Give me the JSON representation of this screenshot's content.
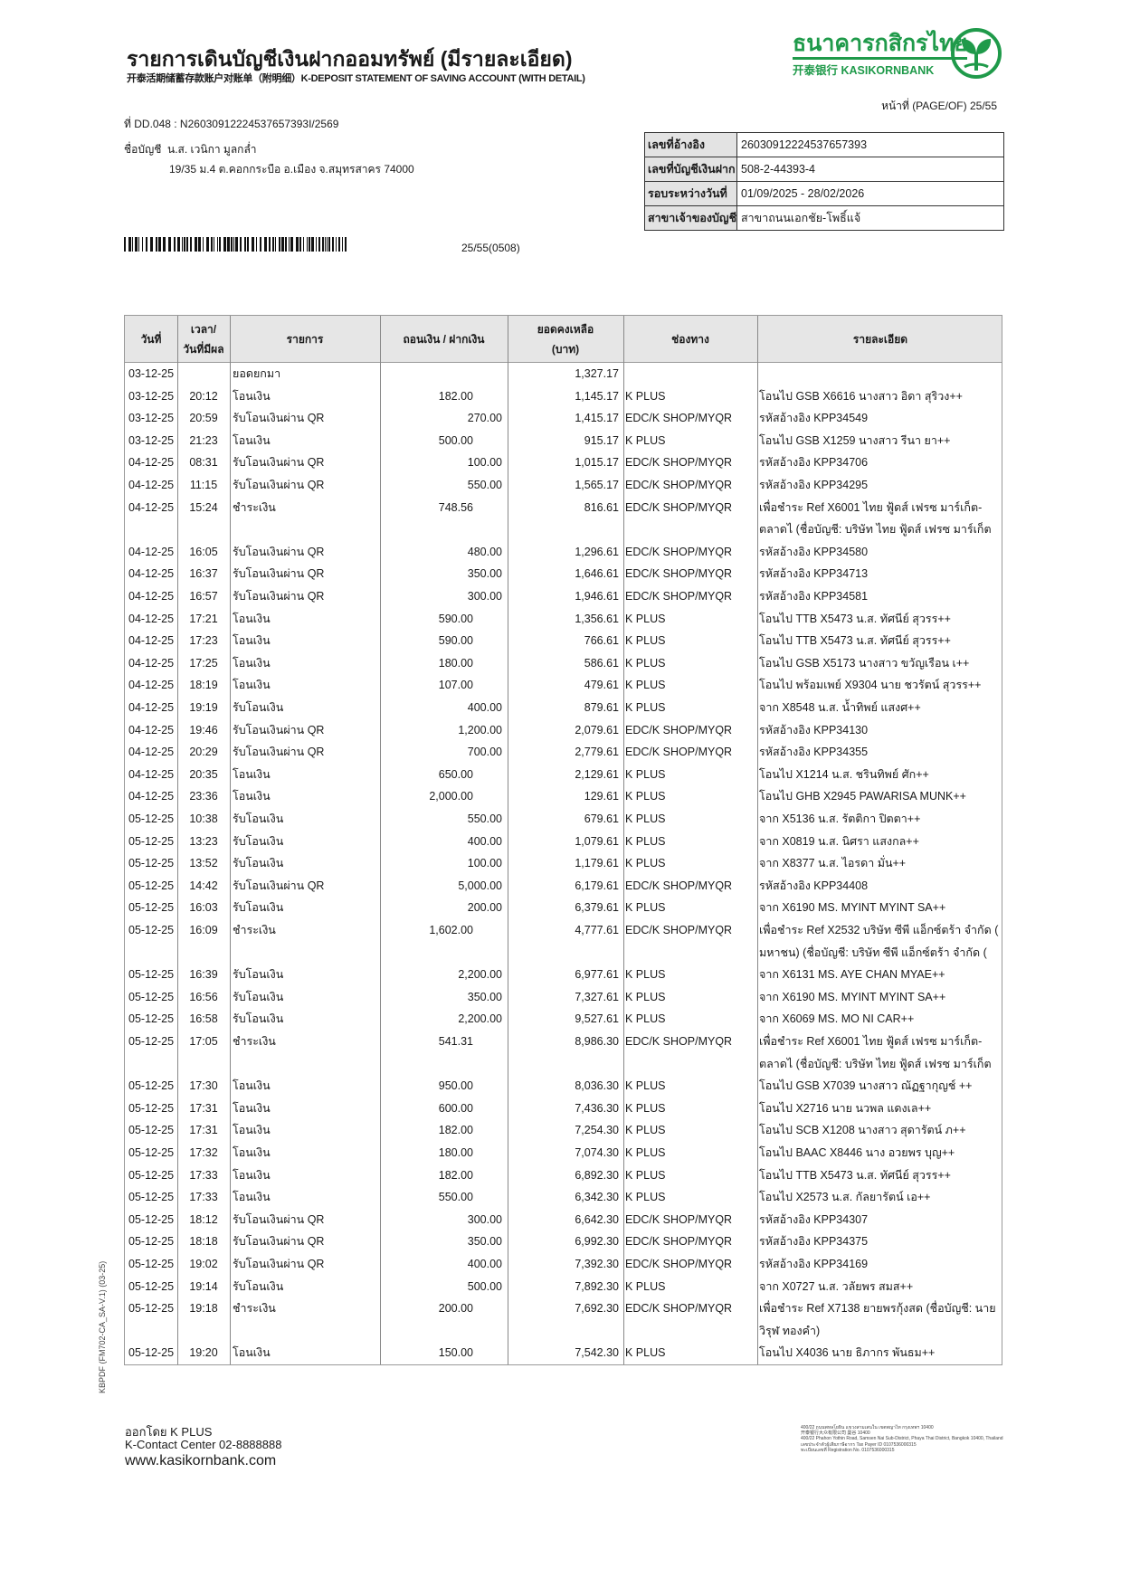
{
  "header": {
    "title_th": "รายการเดินบัญชีเงินฝากออมทรัพย์ (มีรายละเอียด)",
    "title_en": "开泰活期储蓄存款账户对账单（附明细）K-DEPOSIT STATEMENT OF SAVING ACCOUNT (WITH DETAIL)",
    "doc_ref": "ที่ DD.048 : N26030912224537657393I/2569",
    "account_name_label": "ชื่อบัญชี",
    "account_name": "น.ส. เวนิกา มูลกล่ำ",
    "address": "19/35 ม.4 ต.คอกกระบือ อ.เมือง จ.สมุทรสาคร 74000",
    "barcode_text": "25/55(0508)",
    "page": "หน้าที่ (PAGE/OF) 25/55"
  },
  "logo": {
    "name_th": "ธนาคารกสิกรไทย",
    "name_en": "开泰银行 KASIKORNBANK",
    "brand_color": "#1f9a4a"
  },
  "info": [
    {
      "label": "เลขที่อ้างอิง",
      "value": "26030912224537657393"
    },
    {
      "label": "เลขที่บัญชีเงินฝาก",
      "value": "508-2-44393-4"
    },
    {
      "label": "รอบระหว่างวันที่",
      "value": "01/09/2025 - 28/02/2026"
    },
    {
      "label": "สาขาเจ้าของบัญชี",
      "value": "สาขาถนนเอกชัย-โพธิ์แจ้"
    }
  ],
  "table": {
    "headers": [
      "วันที่",
      "เวลา/\nวันที่มีผล",
      "รายการ",
      "ถอนเงิน / ฝากเงิน",
      "ยอดคงเหลือ\n(บาท)",
      "ช่องทาง",
      "รายละเอียด"
    ],
    "rows": [
      [
        "03-12-25",
        "",
        "ยอดยกมา",
        "",
        "",
        "1,327.17",
        "",
        []
      ],
      [
        "03-12-25",
        "20:12",
        "โอนเงิน",
        "182.00",
        "",
        "1,145.17",
        "K PLUS",
        [
          "โอนไป GSB X6616 นางสาว อิดา สุริวง++"
        ]
      ],
      [
        "03-12-25",
        "20:59",
        "รับโอนเงินผ่าน QR",
        "",
        "270.00",
        "1,415.17",
        "EDC/K SHOP/MYQR",
        [
          "รหัสอ้างอิง KPP34549"
        ]
      ],
      [
        "03-12-25",
        "21:23",
        "โอนเงิน",
        "500.00",
        "",
        "915.17",
        "K PLUS",
        [
          "โอนไป GSB X1259 นางสาว รีนา ยา++"
        ]
      ],
      [
        "04-12-25",
        "08:31",
        "รับโอนเงินผ่าน QR",
        "",
        "100.00",
        "1,015.17",
        "EDC/K SHOP/MYQR",
        [
          "รหัสอ้างอิง KPP34706"
        ]
      ],
      [
        "04-12-25",
        "11:15",
        "รับโอนเงินผ่าน QR",
        "",
        "550.00",
        "1,565.17",
        "EDC/K SHOP/MYQR",
        [
          "รหัสอ้างอิง KPP34295"
        ]
      ],
      [
        "04-12-25",
        "15:24",
        "ชำระเงิน",
        "748.56",
        "",
        "816.61",
        "EDC/K SHOP/MYQR",
        [
          "เพื่อชำระ Ref X6001 ไทย ฟู้ดส์ เฟรซ มาร์เก็ต-",
          "ตลาดไ (ชื่อบัญชี: บริษัท ไทย ฟู้ดส์ เฟรซ มาร์เก็ต"
        ]
      ],
      [
        "04-12-25",
        "16:05",
        "รับโอนเงินผ่าน QR",
        "",
        "480.00",
        "1,296.61",
        "EDC/K SHOP/MYQR",
        [
          "รหัสอ้างอิง KPP34580"
        ]
      ],
      [
        "04-12-25",
        "16:37",
        "รับโอนเงินผ่าน QR",
        "",
        "350.00",
        "1,646.61",
        "EDC/K SHOP/MYQR",
        [
          "รหัสอ้างอิง KPP34713"
        ]
      ],
      [
        "04-12-25",
        "16:57",
        "รับโอนเงินผ่าน QR",
        "",
        "300.00",
        "1,946.61",
        "EDC/K SHOP/MYQR",
        [
          "รหัสอ้างอิง KPP34581"
        ]
      ],
      [
        "04-12-25",
        "17:21",
        "โอนเงิน",
        "590.00",
        "",
        "1,356.61",
        "K PLUS",
        [
          "โอนไป TTB X5473 น.ส. ทัศนีย์ สุวรร++"
        ]
      ],
      [
        "04-12-25",
        "17:23",
        "โอนเงิน",
        "590.00",
        "",
        "766.61",
        "K PLUS",
        [
          "โอนไป TTB X5473 น.ส. ทัศนีย์ สุวรร++"
        ]
      ],
      [
        "04-12-25",
        "17:25",
        "โอนเงิน",
        "180.00",
        "",
        "586.61",
        "K PLUS",
        [
          "โอนไป GSB X5173 นางสาว ขวัญเรือน เ++"
        ]
      ],
      [
        "04-12-25",
        "18:19",
        "โอนเงิน",
        "107.00",
        "",
        "479.61",
        "K PLUS",
        [
          "โอนไป พร้อมเพย์ X9304 นาย ชวรัตน์  สุวรร++"
        ]
      ],
      [
        "04-12-25",
        "19:19",
        "รับโอนเงิน",
        "",
        "400.00",
        "879.61",
        "K PLUS",
        [
          "จาก X8548 น.ส. น้ำทิพย์ แสงศ++"
        ]
      ],
      [
        "04-12-25",
        "19:46",
        "รับโอนเงินผ่าน QR",
        "",
        "1,200.00",
        "2,079.61",
        "EDC/K SHOP/MYQR",
        [
          "รหัสอ้างอิง KPP34130"
        ]
      ],
      [
        "04-12-25",
        "20:29",
        "รับโอนเงินผ่าน QR",
        "",
        "700.00",
        "2,779.61",
        "EDC/K SHOP/MYQR",
        [
          "รหัสอ้างอิง KPP34355"
        ]
      ],
      [
        "04-12-25",
        "20:35",
        "โอนเงิน",
        "650.00",
        "",
        "2,129.61",
        "K PLUS",
        [
          "โอนไป X1214 น.ส. ชรินทิพย์ ศัก++"
        ]
      ],
      [
        "04-12-25",
        "23:36",
        "โอนเงิน",
        "2,000.00",
        "",
        "129.61",
        "K PLUS",
        [
          "โอนไป GHB X2945 PAWARISA MUNK++"
        ]
      ],
      [
        "05-12-25",
        "10:38",
        "รับโอนเงิน",
        "",
        "550.00",
        "679.61",
        "K PLUS",
        [
          "จาก X5136 น.ส. รัตติกา ปิตตา++"
        ]
      ],
      [
        "05-12-25",
        "13:23",
        "รับโอนเงิน",
        "",
        "400.00",
        "1,079.61",
        "K PLUS",
        [
          "จาก X0819 น.ส. นิศรา แสงกล++"
        ]
      ],
      [
        "05-12-25",
        "13:52",
        "รับโอนเงิน",
        "",
        "100.00",
        "1,179.61",
        "K PLUS",
        [
          "จาก X8377 น.ส. ไอรดา มั่น++"
        ]
      ],
      [
        "05-12-25",
        "14:42",
        "รับโอนเงินผ่าน QR",
        "",
        "5,000.00",
        "6,179.61",
        "EDC/K SHOP/MYQR",
        [
          "รหัสอ้างอิง KPP34408"
        ]
      ],
      [
        "05-12-25",
        "16:03",
        "รับโอนเงิน",
        "",
        "200.00",
        "6,379.61",
        "K PLUS",
        [
          "จาก X6190 MS. MYINT MYINT SA++"
        ]
      ],
      [
        "05-12-25",
        "16:09",
        "ชำระเงิน",
        "1,602.00",
        "",
        "4,777.61",
        "EDC/K SHOP/MYQR",
        [
          "เพื่อชำระ Ref X2532 บริษัท ซีพี แอ็กซ์ตร้า จำกัด (",
          "มหาชน) (ชื่อบัญชี: บริษัท ซีพี แอ็กซ์ตร้า จำกัด ("
        ]
      ],
      [
        "05-12-25",
        "16:39",
        "รับโอนเงิน",
        "",
        "2,200.00",
        "6,977.61",
        "K PLUS",
        [
          "จาก X6131 MS. AYE CHAN MYAE++"
        ]
      ],
      [
        "05-12-25",
        "16:56",
        "รับโอนเงิน",
        "",
        "350.00",
        "7,327.61",
        "K PLUS",
        [
          "จาก X6190 MS. MYINT MYINT SA++"
        ]
      ],
      [
        "05-12-25",
        "16:58",
        "รับโอนเงิน",
        "",
        "2,200.00",
        "9,527.61",
        "K PLUS",
        [
          "จาก X6069 MS. MO NI CAR++"
        ]
      ],
      [
        "05-12-25",
        "17:05",
        "ชำระเงิน",
        "541.31",
        "",
        "8,986.30",
        "EDC/K SHOP/MYQR",
        [
          "เพื่อชำระ Ref X6001 ไทย ฟู้ดส์ เฟรซ มาร์เก็ต-",
          "ตลาดไ (ชื่อบัญชี: บริษัท ไทย ฟู้ดส์ เฟรซ มาร์เก็ต"
        ]
      ],
      [
        "05-12-25",
        "17:30",
        "โอนเงิน",
        "950.00",
        "",
        "8,036.30",
        "K PLUS",
        [
          "โอนไป GSB X7039 นางสาว ณัฏฐากุญช์ ++"
        ]
      ],
      [
        "05-12-25",
        "17:31",
        "โอนเงิน",
        "600.00",
        "",
        "7,436.30",
        "K PLUS",
        [
          "โอนไป X2716 นาย นวพล แดงเล++"
        ]
      ],
      [
        "05-12-25",
        "17:31",
        "โอนเงิน",
        "182.00",
        "",
        "7,254.30",
        "K PLUS",
        [
          "โอนไป SCB X1208 นางสาว สุดารัตน์ ภ++"
        ]
      ],
      [
        "05-12-25",
        "17:32",
        "โอนเงิน",
        "180.00",
        "",
        "7,074.30",
        "K PLUS",
        [
          "โอนไป BAAC X8446 นาง อวยพร บุญ++"
        ]
      ],
      [
        "05-12-25",
        "17:33",
        "โอนเงิน",
        "182.00",
        "",
        "6,892.30",
        "K PLUS",
        [
          "โอนไป TTB X5473 น.ส. ทัศนีย์ สุวรร++"
        ]
      ],
      [
        "05-12-25",
        "17:33",
        "โอนเงิน",
        "550.00",
        "",
        "6,342.30",
        "K PLUS",
        [
          "โอนไป X2573 น.ส. กัลยารัตน์ เอ++"
        ]
      ],
      [
        "05-12-25",
        "18:12",
        "รับโอนเงินผ่าน QR",
        "",
        "300.00",
        "6,642.30",
        "EDC/K SHOP/MYQR",
        [
          "รหัสอ้างอิง KPP34307"
        ]
      ],
      [
        "05-12-25",
        "18:18",
        "รับโอนเงินผ่าน QR",
        "",
        "350.00",
        "6,992.30",
        "EDC/K SHOP/MYQR",
        [
          "รหัสอ้างอิง KPP34375"
        ]
      ],
      [
        "05-12-25",
        "19:02",
        "รับโอนเงินผ่าน QR",
        "",
        "400.00",
        "7,392.30",
        "EDC/K SHOP/MYQR",
        [
          "รหัสอ้างอิง KPP34169"
        ]
      ],
      [
        "05-12-25",
        "19:14",
        "รับโอนเงิน",
        "",
        "500.00",
        "7,892.30",
        "K PLUS",
        [
          "จาก X0727 น.ส. วลัยพร สมส++"
        ]
      ],
      [
        "05-12-25",
        "19:18",
        "ชำระเงิน",
        "200.00",
        "",
        "7,692.30",
        "EDC/K SHOP/MYQR",
        [
          "เพื่อชำระ Ref X7138 ยายพรกุ้งสด (ชื่อบัญชี: นาย",
          "วิรุฬ ทองคำ)"
        ]
      ],
      [
        "05-12-25",
        "19:20",
        "โอนเงิน",
        "150.00",
        "",
        "7,542.30",
        "K PLUS",
        [
          "โอนไป X4036 นาย ธิภากร พันธม++"
        ]
      ]
    ]
  },
  "side_code": "KBPDF (FM702-CA_SA-V.1) (03-25)",
  "footer": {
    "issued_by": "ออกโดย K PLUS",
    "contact": "K-Contact Center 02-8888888",
    "website": "www.kasikornbank.com",
    "address_lines": [
      "400/22 ถนนพหลโยธิน แขวงสามเสนใน เขตพญาไท กรุงเทพฯ 10400",
      "开泰银行大众有限公司 曼谷 10400",
      "400/22 Phahon Yothin Road, Samsen Nai Sub-District, Phaya Thai District, Bangkok 10400, Thailand",
      "เลขประจำตัวผู้เสียภาษีอากร Tax Payer ID 0107536000315",
      "ทะเบียนเลขที่ Registration No. 0107536000315"
    ]
  }
}
